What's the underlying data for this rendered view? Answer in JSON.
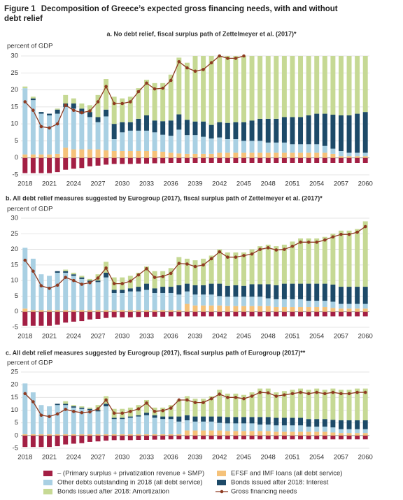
{
  "figure": {
    "label": "Figure 1",
    "title": "Decomposition of Greece’s expected gross financing needs, with and without debt relief"
  },
  "chart_data": [
    {
      "type": "stacked_bar",
      "subtitle": "a. No debt relief, fiscal surplus path of Zettelmeyer et al. (2017)*",
      "ylabel": "percent of GDP",
      "x": [
        2018,
        2019,
        2020,
        2021,
        2022,
        2023,
        2024,
        2025,
        2026,
        2027,
        2028,
        2029,
        2030,
        2031,
        2032,
        2033,
        2034,
        2035,
        2036,
        2037,
        2038,
        2039,
        2040,
        2041,
        2042,
        2043,
        2044,
        2045,
        2046,
        2047,
        2048,
        2049,
        2050,
        2051,
        2052,
        2053,
        2054,
        2055,
        2056,
        2057,
        2058,
        2059,
        2060
      ],
      "xlim": [
        2017.5,
        2060.5
      ],
      "xticks": [
        2018,
        2021,
        2024,
        2027,
        2030,
        2033,
        2036,
        2039,
        2042,
        2045,
        2048,
        2051,
        2054,
        2057,
        2060
      ],
      "ylim": [
        -5,
        30
      ],
      "yticks": [
        -5,
        0,
        5,
        10,
        15,
        20,
        25,
        30
      ],
      "grid": true,
      "series": [
        {
          "name": "– (Primary surplus + privatization revenue + SMP)",
          "color": "#a31f44",
          "values": [
            -4.5,
            -4.5,
            -4.5,
            -4.5,
            -4.2,
            -3.5,
            -3.2,
            -3,
            -2.5,
            -2.3,
            -2,
            -1.8,
            -1.8,
            -1.8,
            -1.7,
            -1.7,
            -1.6,
            -1.6,
            -1.5,
            -1.5,
            -1.5,
            -1.5,
            -1.5,
            -1.5,
            -1.5,
            -1.5,
            -1.5,
            -1.5,
            -1.5,
            -1.5,
            -1.5,
            -1.5,
            -1.5,
            -1.5,
            -1.5,
            -1.5,
            -1.5,
            -1.5,
            -1.5,
            -1.5,
            -1.5,
            -1.5,
            -1.5
          ]
        },
        {
          "name": "EFSF and IMF loans (all debt service)",
          "color": "#f5c27a",
          "values": [
            1,
            1,
            1,
            1,
            1.2,
            3,
            2.5,
            2.5,
            2.5,
            2.5,
            2.2,
            2,
            2,
            2,
            2,
            2,
            2,
            1.8,
            1.5,
            1.3,
            1.2,
            1.2,
            1.2,
            1.2,
            1.5,
            1.5,
            1.5,
            1.5,
            1.5,
            1.5,
            1.5,
            1.5,
            1.5,
            1.5,
            1.5,
            1.5,
            1.5,
            1.5,
            1.2,
            0.5,
            0.5,
            0.5,
            0.5
          ]
        },
        {
          "name": "Other debts outstanding in 2018 (all debt service)",
          "color": "#a9d0e3",
          "values": [
            19.5,
            16,
            12,
            11.5,
            11.8,
            12,
            12,
            10.5,
            9.5,
            8,
            10,
            3.5,
            5.5,
            6,
            6,
            6,
            5.5,
            5,
            5,
            7,
            5.5,
            5.5,
            5,
            4.5,
            4.5,
            4,
            4,
            3.5,
            3.5,
            3.5,
            3,
            3,
            3,
            2.5,
            2.5,
            2.5,
            2.5,
            2,
            1.5,
            1.5,
            1,
            1,
            1
          ]
        },
        {
          "name": "Bonds issued after 2018: Interest",
          "color": "#1d4a68",
          "values": [
            0,
            0.5,
            0.5,
            0.5,
            1.2,
            1,
            1.5,
            1.5,
            1.5,
            1.5,
            2,
            4.5,
            3,
            2.5,
            3.5,
            4.5,
            3.5,
            4,
            4.5,
            4.5,
            4.5,
            4,
            4.5,
            4,
            4.5,
            4.8,
            5,
            5.5,
            6,
            6.5,
            7,
            7,
            7.5,
            8,
            8,
            8.5,
            9,
            9.5,
            10,
            10.5,
            11,
            11.5,
            12
          ]
        },
        {
          "name": "Bonds issued after 2018: Amortization",
          "color": "#c6d994",
          "values": [
            0.5,
            0.5,
            0,
            0,
            0.3,
            2.5,
            1.5,
            1.5,
            2,
            6.5,
            9,
            8,
            7,
            7.5,
            9,
            10.5,
            11,
            11.2,
            13.5,
            16.7,
            16.8,
            19.3,
            19.3,
            20.3,
            19.5,
            19.7,
            19.5,
            19.5,
            19,
            18.5,
            18.5,
            18.5,
            18,
            18,
            18,
            17.5,
            17,
            17,
            17.3,
            17.5,
            17.5,
            17,
            16.5
          ]
        },
        {
          "name": "Gross financing needs",
          "type": "line",
          "color": "#8e3b22",
          "values": [
            16.5,
            14,
            9.2,
            8.8,
            10,
            15.5,
            14,
            13.3,
            13.8,
            16.5,
            21,
            16,
            16,
            16.5,
            19.5,
            22,
            20.3,
            20.5,
            22.8,
            28.3,
            26.5,
            25.5,
            26,
            28,
            30,
            29.3,
            29.3,
            30,
            null,
            null,
            null,
            null,
            null,
            null,
            null,
            null,
            null,
            null,
            null,
            null,
            null,
            null,
            null
          ]
        }
      ]
    },
    {
      "type": "stacked_bar",
      "subtitle": "b. All debt relief measures suggested by Eurogroup (2017), fiscal surplus path of Zettelmeyer et al. (2017)*",
      "ylabel": "percent of GDP",
      "x": [
        2018,
        2019,
        2020,
        2021,
        2022,
        2023,
        2024,
        2025,
        2026,
        2027,
        2028,
        2029,
        2030,
        2031,
        2032,
        2033,
        2034,
        2035,
        2036,
        2037,
        2038,
        2039,
        2040,
        2041,
        2042,
        2043,
        2044,
        2045,
        2046,
        2047,
        2048,
        2049,
        2050,
        2051,
        2052,
        2053,
        2054,
        2055,
        2056,
        2057,
        2058,
        2059,
        2060
      ],
      "xlim": [
        2017.5,
        2060.5
      ],
      "xticks": [
        2018,
        2021,
        2024,
        2027,
        2030,
        2033,
        2036,
        2039,
        2042,
        2045,
        2048,
        2051,
        2054,
        2057,
        2060
      ],
      "ylim": [
        -5,
        30
      ],
      "yticks": [
        -5,
        0,
        5,
        10,
        15,
        20,
        25,
        30
      ],
      "grid": true,
      "series": [
        {
          "color": "#a31f44",
          "values": [
            -4.5,
            -4.5,
            -4.5,
            -4.5,
            -4.2,
            -3.5,
            -3.2,
            -3,
            -2.5,
            -2.3,
            -2,
            -1.8,
            -1.8,
            -1.8,
            -1.7,
            -1.7,
            -1.6,
            -1.6,
            -1.5,
            -1.5,
            -1.5,
            -1.5,
            -1.5,
            -1.5,
            -1.5,
            -1.5,
            -1.5,
            -1.5,
            -1.5,
            -1.5,
            -1.5,
            -1.5,
            -1.5,
            -1.5,
            -1.5,
            -1.5,
            -1.5,
            -1.5,
            -1.5,
            -1.5,
            -1.5,
            -1.5,
            -1.5
          ]
        },
        {
          "color": "#f5c27a",
          "values": [
            1,
            0.5,
            0.5,
            0.5,
            0.5,
            0.5,
            0.5,
            0.5,
            0.5,
            0.5,
            0.5,
            0.5,
            0.5,
            0.5,
            0.5,
            0.5,
            0.5,
            0.5,
            0.5,
            0.5,
            2.5,
            2,
            2,
            2,
            2,
            1.8,
            1.8,
            1.8,
            1.8,
            1.8,
            1.8,
            1.5,
            1.5,
            1.5,
            1.5,
            1.5,
            1.5,
            1.5,
            1.2,
            1,
            1,
            1,
            1
          ]
        },
        {
          "color": "#a9d0e3",
          "values": [
            19.5,
            16.5,
            11.5,
            11,
            12,
            12,
            11,
            10,
            9,
            9,
            10.5,
            5.5,
            5.5,
            6,
            6,
            6.5,
            5.5,
            5.5,
            5.5,
            5,
            4,
            3.5,
            3.5,
            3.5,
            3,
            3,
            3,
            3,
            3,
            3,
            2.5,
            2.5,
            2.5,
            2.5,
            2.5,
            2,
            2,
            2,
            2,
            1.5,
            1.5,
            1.5,
            1.5
          ]
        },
        {
          "color": "#1d4a68",
          "values": [
            0,
            0,
            0,
            0,
            0.5,
            0.5,
            0.5,
            0.5,
            0.5,
            0.5,
            1.5,
            1,
            1,
            1,
            1.5,
            2,
            1.5,
            2,
            2,
            3,
            2.5,
            3,
            3,
            3.5,
            4,
            3.5,
            3.7,
            3.5,
            4,
            4,
            4.5,
            4.5,
            5,
            5,
            5,
            5.5,
            5.5,
            5.5,
            5.5,
            5.5,
            5.5,
            5.5,
            5.5
          ]
        },
        {
          "color": "#c6d994",
          "values": [
            0,
            0,
            0,
            0,
            0,
            0.5,
            0.5,
            0.5,
            0.5,
            2,
            3.5,
            4,
            4,
            4,
            4.5,
            5.5,
            5.5,
            5,
            6,
            9,
            8,
            8,
            8.5,
            9,
            11,
            10.7,
            10.5,
            10.7,
            11.2,
            12.2,
            12.7,
            12.5,
            12.5,
            13.5,
            14.5,
            14.5,
            14.5,
            15,
            16.3,
            18,
            18,
            18.5,
            21
          ]
        },
        {
          "type": "line",
          "color": "#8e3b22",
          "values": [
            16.5,
            13,
            8.3,
            7.5,
            8.5,
            11,
            10,
            8.8,
            9.3,
            10.8,
            14,
            9,
            9,
            9.8,
            11.8,
            13.8,
            11,
            11.3,
            12.3,
            15.5,
            15.3,
            14.5,
            15,
            17,
            19.2,
            17.5,
            17.5,
            18,
            18.5,
            20,
            20.5,
            19.8,
            20,
            21,
            22.3,
            22.3,
            22.3,
            23,
            24,
            24.8,
            24.8,
            25.5,
            27.3
          ]
        }
      ]
    },
    {
      "type": "stacked_bar",
      "subtitle": "c. All debt relief measures suggested by Eurogroup (2017), fiscal surplus path of Eurogroup (2017)**",
      "ylabel": "percent of GDP",
      "x": [
        2018,
        2019,
        2020,
        2021,
        2022,
        2023,
        2024,
        2025,
        2026,
        2027,
        2028,
        2029,
        2030,
        2031,
        2032,
        2033,
        2034,
        2035,
        2036,
        2037,
        2038,
        2039,
        2040,
        2041,
        2042,
        2043,
        2044,
        2045,
        2046,
        2047,
        2048,
        2049,
        2050,
        2051,
        2052,
        2053,
        2054,
        2055,
        2056,
        2057,
        2058,
        2059,
        2060
      ],
      "xlim": [
        2017.5,
        2060.5
      ],
      "xticks": [
        2018,
        2021,
        2024,
        2027,
        2030,
        2033,
        2036,
        2039,
        2042,
        2045,
        2048,
        2051,
        2054,
        2057,
        2060
      ],
      "ylim": [
        -5,
        25
      ],
      "yticks": [
        -5,
        0,
        5,
        10,
        15,
        20,
        25
      ],
      "grid": true,
      "series": [
        {
          "color": "#a31f44",
          "values": [
            -4.5,
            -4.5,
            -4.5,
            -4.5,
            -4.2,
            -3.5,
            -3.2,
            -3,
            -2.5,
            -2.3,
            -2,
            -1.8,
            -1.8,
            -1.8,
            -1.7,
            -1.7,
            -1.6,
            -1.6,
            -1.5,
            -1.5,
            -1.5,
            -1.5,
            -1.5,
            -1.5,
            -1.5,
            -1.5,
            -1.5,
            -1.5,
            -1.5,
            -1.5,
            -1.5,
            -1.5,
            -1.5,
            -1.5,
            -1.5,
            -1.5,
            -1.5,
            -1.5,
            -1.5,
            -1.5,
            -1.5,
            -1.5,
            -1.5
          ]
        },
        {
          "color": "#f5c27a",
          "values": [
            0.5,
            0.5,
            0.5,
            0.5,
            0.5,
            0.5,
            0.5,
            0.5,
            0.5,
            0.5,
            0.5,
            0.5,
            0.5,
            0.5,
            0.5,
            0.5,
            0.5,
            0.5,
            0.5,
            0.5,
            2,
            2,
            2,
            2,
            2,
            1.8,
            1.8,
            1.8,
            1.8,
            1.8,
            1.8,
            1.5,
            1.5,
            1.5,
            1.5,
            1.5,
            1.5,
            1.5,
            1.2,
            1,
            1,
            1,
            1
          ]
        },
        {
          "color": "#a9d0e3",
          "values": [
            20,
            16.5,
            11.5,
            11,
            11.5,
            11.5,
            10.5,
            10,
            9.5,
            9,
            11,
            6,
            6,
            6.5,
            7,
            7.5,
            6.5,
            6,
            6,
            5,
            4,
            3.5,
            3.5,
            3.5,
            3,
            3,
            3,
            3,
            3,
            2.5,
            2.5,
            2.5,
            2.5,
            2.5,
            2.5,
            2,
            2,
            2,
            2,
            1.5,
            1.5,
            1.5,
            1.5
          ]
        },
        {
          "color": "#1d4a68",
          "values": [
            0,
            0,
            0,
            0,
            0.5,
            0.5,
            0.5,
            0.5,
            0.5,
            0.5,
            1,
            0.5,
            0.5,
            0.5,
            0.5,
            1,
            1,
            1,
            1,
            2,
            2,
            2,
            2,
            2,
            2.5,
            2.5,
            2.5,
            2.5,
            2.5,
            3,
            3,
            3,
            3,
            3,
            3,
            3,
            3,
            3,
            3,
            3.5,
            3.5,
            3.5,
            3.5
          ]
        },
        {
          "color": "#c6d994",
          "values": [
            0,
            0,
            0,
            0,
            0,
            1,
            0.5,
            0.5,
            0.5,
            2,
            3,
            3.5,
            3.5,
            3.5,
            4,
            5,
            3,
            3.5,
            4.5,
            6.5,
            7.5,
            7,
            7,
            8,
            10.5,
            9.2,
            9.2,
            8.7,
            9.7,
            11.2,
            11.2,
            10,
            10.5,
            11,
            11.5,
            11.5,
            12,
            11.5,
            12.3,
            12,
            12,
            12.5,
            12.5
          ]
        },
        {
          "type": "line",
          "color": "#8e3b22",
          "values": [
            16.5,
            13.3,
            8,
            7.5,
            8.5,
            10.3,
            9.5,
            9,
            9.3,
            10.5,
            14,
            8.8,
            8.8,
            9.5,
            10.5,
            12.8,
            9.5,
            9.8,
            10.8,
            14,
            14,
            13,
            13,
            14.5,
            16.3,
            15,
            15,
            14.5,
            15.5,
            17,
            16.8,
            15.5,
            16,
            16.5,
            17,
            16.5,
            17,
            16.5,
            17,
            16.5,
            16.5,
            17,
            17
          ]
        }
      ]
    }
  ]
}
